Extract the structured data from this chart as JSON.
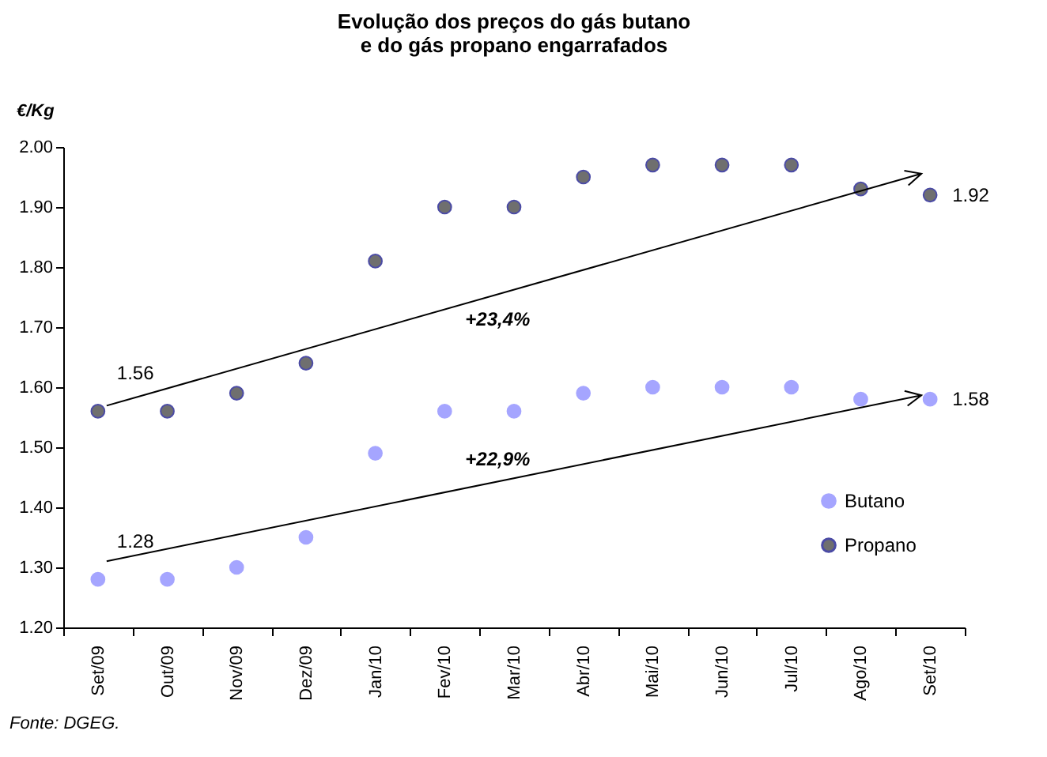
{
  "chart_data": {
    "type": "scatter",
    "title": "Evolução dos preços do gás butano\ne do gás propano engarrafados",
    "ylabel": "€/Kg",
    "categories": [
      "Set/09",
      "Out/09",
      "Nov/09",
      "Dez/09",
      "Jan/10",
      "Fev/10",
      "Mar/10",
      "Abr/10",
      "Mai/10",
      "Jun/10",
      "Jul/10",
      "Ago/10",
      "Set/10"
    ],
    "series": [
      {
        "name": "Butano",
        "color": "#8080ff",
        "values": [
          1.28,
          1.28,
          1.3,
          1.35,
          1.49,
          1.56,
          1.56,
          1.59,
          1.6,
          1.6,
          1.6,
          1.58,
          1.58
        ]
      },
      {
        "name": "Propano",
        "color": "#333333",
        "values": [
          1.56,
          1.56,
          1.59,
          1.64,
          1.81,
          1.9,
          1.9,
          1.95,
          1.97,
          1.97,
          1.97,
          1.93,
          1.92
        ]
      }
    ],
    "ylim": [
      1.2,
      2.0
    ],
    "yticks": [
      {
        "value": 1.2,
        "label": "1.20"
      },
      {
        "value": 1.3,
        "label": "1.30"
      },
      {
        "value": 1.4,
        "label": "1.40"
      },
      {
        "value": 1.5,
        "label": "1.50"
      },
      {
        "value": 1.6,
        "label": "1.60"
      },
      {
        "value": 1.7,
        "label": "1.70"
      },
      {
        "value": 1.8,
        "label": "1.80"
      },
      {
        "value": 1.9,
        "label": "1.90"
      },
      {
        "value": 2.0,
        "label": "2.00"
      }
    ],
    "annotations": [
      {
        "text": "1.56",
        "x": "Set/09",
        "y": 1.56
      },
      {
        "text": "1.28",
        "x": "Set/09",
        "y": 1.28
      },
      {
        "text": "1.92",
        "x": "Set/10",
        "y": 1.92
      },
      {
        "text": "1.58",
        "x": "Set/10",
        "y": 1.58
      },
      "+22,9%",
      "+23,4%",
      "Fonte: DGEG."
    ],
    "legend": "right",
    "grid": false,
    "marker": "circle"
  }
}
